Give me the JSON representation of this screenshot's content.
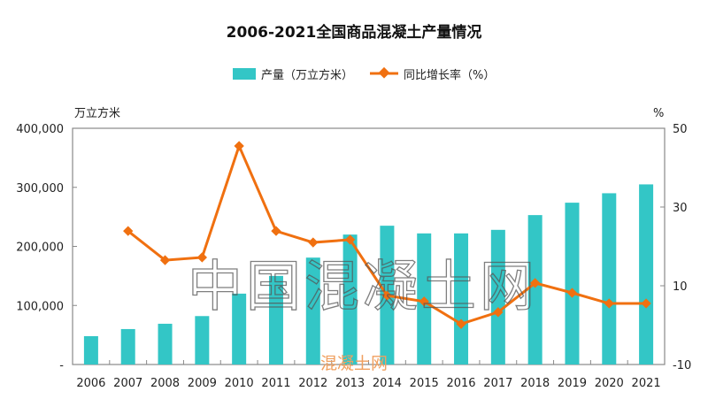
{
  "chart_data": {
    "type": "bar+line",
    "title": "2006-2021全国商品混凝土产量情况",
    "categories": [
      "2006",
      "2007",
      "2008",
      "2009",
      "2010",
      "2011",
      "2012",
      "2013",
      "2014",
      "2015",
      "2016",
      "2017",
      "2018",
      "2019",
      "2020",
      "2021"
    ],
    "series": [
      {
        "name": "产量（万立方米）",
        "type": "bar",
        "axis": "left",
        "color": "#33c6c6",
        "values": [
          48000,
          60000,
          69000,
          82000,
          120000,
          150000,
          181000,
          220000,
          235000,
          222000,
          222000,
          228000,
          253000,
          274000,
          290000,
          305000
        ]
      },
      {
        "name": "同比增长率（%）",
        "type": "line",
        "axis": "right",
        "color": "#f07010",
        "values": [
          null,
          23.9,
          16.5,
          17.2,
          45.5,
          23.9,
          21.0,
          21.7,
          7.5,
          6.0,
          0.3,
          3.3,
          10.7,
          8.2,
          5.5,
          5.5
        ]
      }
    ],
    "left_axis": {
      "label": "万立方米",
      "ylim": [
        0,
        400000
      ],
      "ticks": [
        "-",
        "100,000",
        "200,000",
        "300,000",
        "400,000"
      ]
    },
    "right_axis": {
      "label": "%",
      "ylim": [
        -10,
        50
      ],
      "ticks": [
        "-10",
        "10",
        "30",
        "50"
      ]
    },
    "legend_position": "top-center",
    "grid": false
  },
  "watermark": {
    "main": "中国混凝土网",
    "small": "混凝土网"
  }
}
